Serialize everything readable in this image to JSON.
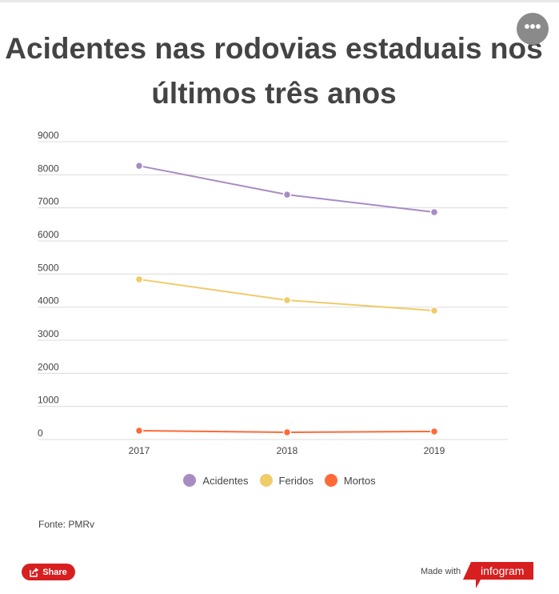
{
  "header": {
    "title": "Acidentes nas rodovias estaduais nos últimos três anos",
    "menu_icon": "more-horizontal-icon"
  },
  "chart_data": {
    "type": "line",
    "title": "Acidentes nas rodovias estaduais nos últimos três anos",
    "categories": [
      "2017",
      "2018",
      "2019"
    ],
    "series": [
      {
        "name": "Acidentes",
        "color": "#a98bc4",
        "values": [
          8270,
          7400,
          6870
        ]
      },
      {
        "name": "Feridos",
        "color": "#f0cb69",
        "values": [
          4840,
          4210,
          3895
        ]
      },
      {
        "name": "Mortos",
        "color": "#fd6a37",
        "values": [
          266,
          218,
          242
        ]
      }
    ],
    "ylim": [
      0,
      9000
    ],
    "yticks": [
      "0",
      "1000",
      "2000",
      "3000",
      "4000",
      "5000",
      "6000",
      "7000",
      "8000",
      "9000"
    ],
    "grid": true,
    "legend": "bottom",
    "xlabel": "",
    "ylabel": ""
  },
  "footer": {
    "source": "Fonte: PMRv",
    "share_label": "Share",
    "made_with": "Made with",
    "brand": "infogram",
    "brand_color": "#d81f1f"
  }
}
